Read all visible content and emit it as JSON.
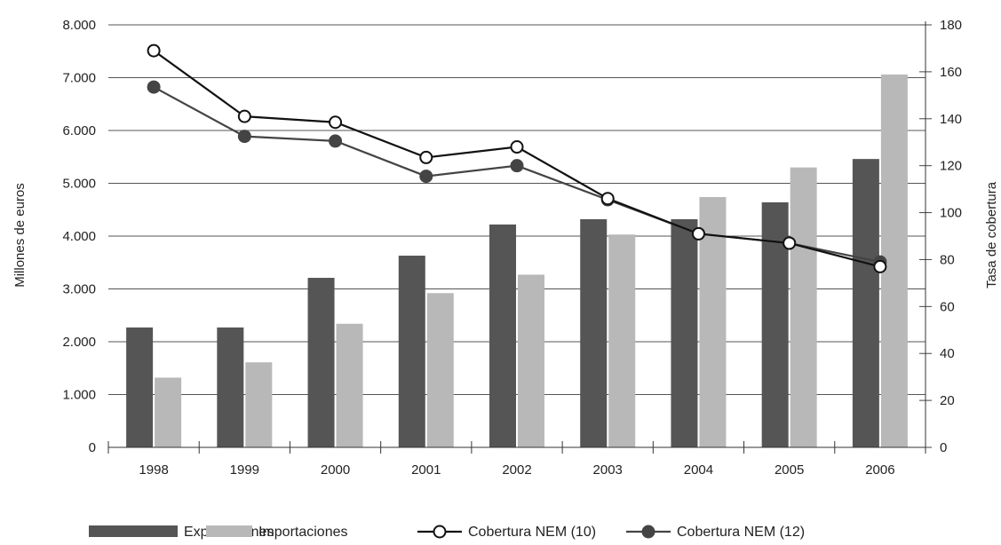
{
  "chart_data": {
    "type": "bar",
    "categories": [
      "1998",
      "1999",
      "2000",
      "2001",
      "2002",
      "2003",
      "2004",
      "2005",
      "2006"
    ],
    "series": [
      {
        "name": "Exportaciones",
        "kind": "bar",
        "axis": "left",
        "color": "#555555",
        "values": [
          2270,
          2270,
          3210,
          3630,
          4220,
          4320,
          4320,
          4640,
          5460
        ]
      },
      {
        "name": "Importaciones",
        "kind": "bar",
        "axis": "left",
        "color": "#b8b8b8",
        "values": [
          1320,
          1610,
          2340,
          2920,
          3270,
          4030,
          4740,
          5300,
          7060
        ]
      },
      {
        "name": "Cobertura NEM (10)",
        "kind": "line",
        "axis": "right",
        "color": "#111111",
        "marker": "open-circle",
        "values": [
          169,
          141,
          138.5,
          123.5,
          128,
          106,
          91,
          87,
          77
        ]
      },
      {
        "name": "Cobertura NEM (12)",
        "kind": "line",
        "axis": "right",
        "color": "#444444",
        "marker": "filled-circle",
        "values": [
          153.5,
          132.5,
          130.5,
          115.5,
          120,
          105.5,
          91,
          87,
          79
        ]
      }
    ],
    "ylabel": "Millones de euros",
    "y2label": "Tasa de cobertura",
    "ylim": [
      0,
      8000
    ],
    "y2lim": [
      0,
      180
    ],
    "y_ticks": [
      "0",
      "1.000",
      "2.000",
      "3.000",
      "4.000",
      "5.000",
      "6.000",
      "7.000",
      "8.000"
    ],
    "y2_ticks": [
      "0",
      "20",
      "40",
      "60",
      "80",
      "100",
      "120",
      "140",
      "160",
      "180"
    ],
    "grid": true,
    "legend": "bottom"
  }
}
